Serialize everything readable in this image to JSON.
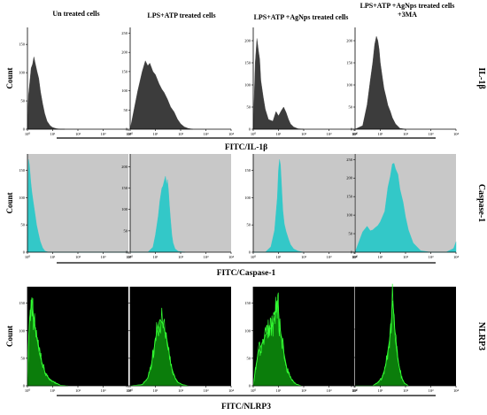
{
  "chart_data": {
    "type": "area",
    "columns": [
      "Un treated cells",
      "LPS+ATP treated cells",
      "LPS+ATP +AgNps treated cells",
      "LPS+ATP +AgNps treated cells +3MA"
    ],
    "column_title_lines": [
      [
        "Un treated cells"
      ],
      [
        "LPS+ATP treated cells"
      ],
      [
        "LPS+ATP +AgNps treated cells"
      ],
      [
        "LPS+ATP +AgNps treated cells",
        "+3MA"
      ]
    ],
    "ylabel": "Count",
    "x_tick_labels": [
      "10⁰",
      "10¹",
      "10²",
      "10³",
      "10⁴"
    ],
    "x_scale": "log",
    "xlim": [
      1,
      10000
    ],
    "rows": [
      {
        "marker": "IL-1β",
        "xlabel": "FITC/IL-1β",
        "fill_color": "#3c3c3c",
        "panel_background": "#ffffff",
        "y_ticks": [
          [
            0,
            50,
            100,
            150
          ],
          [
            0,
            50,
            100,
            150,
            200,
            250
          ],
          [
            0,
            50,
            100,
            150,
            200
          ],
          [
            0,
            50,
            100,
            150,
            200
          ]
        ],
        "ylim": [
          [
            0,
            180
          ],
          [
            0,
            265
          ],
          [
            0,
            230
          ],
          [
            0,
            230
          ]
        ],
        "histograms": [
          {
            "x": [
              1,
              1.1,
              1.25,
              1.4,
              1.6,
              1.8,
              2.0,
              2.4,
              2.8,
              3.3,
              4.0,
              4.8,
              6,
              8,
              10,
              14,
              20,
              30
            ],
            "counts": [
              0,
              60,
              85,
              108,
              115,
              128,
              118,
              102,
              90,
              66,
              45,
              28,
              14,
              6,
              3,
              1,
              0,
              0
            ]
          },
          {
            "x": [
              1,
              2,
              3,
              4,
              5,
              6,
              8,
              10,
              14,
              18,
              22,
              30,
              40,
              55,
              75,
              100,
              140,
              200,
              300
            ],
            "counts": [
              0,
              100,
              150,
              178,
              165,
              172,
              150,
              142,
              118,
              104,
              96,
              78,
              58,
              45,
              26,
              14,
              6,
              2,
              0
            ]
          },
          {
            "x": [
              1,
              1.2,
              1.4,
              1.6,
              1.8,
              2.0,
              2.5,
              3,
              4,
              6,
              8,
              10,
              13,
              16,
              20,
              25,
              30,
              40,
              60,
              100
            ],
            "counts": [
              0,
              150,
              205,
              178,
              158,
              110,
              72,
              45,
              22,
              18,
              40,
              30,
              42,
              50,
              38,
              22,
              12,
              5,
              1,
              0
            ]
          },
          {
            "x": [
              1,
              2,
              3,
              4,
              5,
              6,
              7,
              8,
              9,
              10,
              12,
              14,
              17,
              20,
              25,
              30,
              40,
              60,
              100
            ],
            "counts": [
              0,
              8,
              55,
              110,
              150,
              192,
              210,
              200,
              180,
              150,
              118,
              92,
              72,
              54,
              40,
              26,
              12,
              2,
              0
            ]
          }
        ]
      },
      {
        "marker": "Caspase-1",
        "xlabel": "FITC/Caspase-1",
        "fill_color": "#33c8c8",
        "panel_background": "#c8c8c8",
        "y_ticks": [
          [
            0,
            50,
            100,
            150
          ],
          [
            0,
            50,
            100,
            150,
            200
          ],
          [
            0,
            50,
            100,
            150
          ],
          [
            0,
            50,
            100,
            150,
            200,
            250
          ]
        ],
        "ylim": [
          [
            0,
            180
          ],
          [
            0,
            230
          ],
          [
            0,
            180
          ],
          [
            0,
            265
          ]
        ],
        "histograms": [
          {
            "x": [
              1,
              1.1,
              1.2,
              1.35,
              1.5,
              1.7,
              2.0,
              2.3,
              2.7,
              3.2,
              4,
              5,
              7,
              10,
              20,
              100,
              1000,
              10000
            ],
            "counts": [
              0,
              170,
              160,
              130,
              110,
              92,
              70,
              50,
              35,
              20,
              8,
              2,
              0,
              0,
              0,
              0,
              0,
              0
            ]
          },
          {
            "x": [
              1,
              5,
              8,
              10,
              13,
              15,
              18,
              20,
              22,
              25,
              28,
              30,
              33,
              36,
              40,
              45,
              50,
              60,
              80,
              150
            ],
            "counts": [
              0,
              0,
              12,
              40,
              85,
              120,
              150,
              155,
              165,
              178,
              158,
              170,
              145,
              110,
              75,
              40,
              22,
              8,
              2,
              0
            ]
          },
          {
            "x": [
              1,
              3,
              5,
              7,
              9,
              10,
              11,
              12,
              13,
              14,
              15,
              17,
              20,
              25,
              30,
              40,
              60,
              100
            ],
            "counts": [
              0,
              0,
              10,
              40,
              100,
              150,
              170,
              160,
              130,
              100,
              75,
              52,
              38,
              24,
              14,
              6,
              2,
              0
            ]
          },
          {
            "x": [
              1,
              2,
              3,
              4,
              5,
              6,
              8,
              10,
              15,
              20,
              25,
              30,
              35,
              40,
              50,
              60,
              80,
              100,
              130,
              200,
              400,
              1000,
              4000,
              8000,
              10000
            ],
            "counts": [
              0,
              55,
              70,
              58,
              60,
              65,
              72,
              82,
              110,
              175,
              205,
              238,
              240,
              225,
              210,
              170,
              135,
              95,
              60,
              25,
              4,
              0,
              0,
              10,
              28
            ]
          }
        ]
      },
      {
        "marker": "NLRP3",
        "xlabel": "FITC/NLRP3",
        "fill_color": "#0b7d0b",
        "line_color": "#33ff33",
        "panel_background": "#000000",
        "y_ticks": [
          [
            0,
            50,
            100,
            150
          ],
          [
            0,
            50,
            100,
            150
          ],
          [
            0,
            50,
            100,
            150
          ],
          [
            0,
            50,
            100
          ]
        ],
        "ylim": [
          [
            0,
            180
          ],
          [
            0,
            180
          ],
          [
            0,
            180
          ],
          [
            0,
            175
          ]
        ],
        "histograms": [
          {
            "x": [
              1,
              1.1,
              1.2,
              1.35,
              1.5,
              1.7,
              2.0,
              2.5,
              3,
              4,
              5,
              7,
              10,
              15,
              20,
              40
            ],
            "counts": [
              0,
              75,
              120,
              140,
              160,
              130,
              105,
              80,
              58,
              38,
              24,
              14,
              8,
              4,
              1,
              0
            ]
          },
          {
            "x": [
              1,
              3,
              5,
              7,
              9,
              11,
              13,
              15,
              17,
              20,
              23,
              26,
              30,
              35,
              40,
              50,
              60,
              80,
              120,
              200
            ],
            "counts": [
              0,
              2,
              14,
              40,
              70,
              95,
              110,
              120,
              118,
              112,
              100,
              95,
              78,
              60,
              40,
              25,
              15,
              6,
              2,
              0
            ]
          },
          {
            "x": [
              1,
              1.3,
              1.6,
              2,
              2.5,
              3,
              4,
              5,
              6,
              7,
              8,
              9,
              10,
              11,
              13,
              15,
              18,
              22,
              28,
              35,
              50,
              80
            ],
            "counts": [
              0,
              38,
              62,
              72,
              80,
              92,
              100,
              105,
              112,
              125,
              140,
              155,
              138,
              108,
              90,
              70,
              50,
              30,
              18,
              10,
              3,
              0
            ]
          },
          {
            "x": [
              1,
              5,
              8,
              12,
              15,
              18,
              20,
              23,
              25,
              28,
              30,
              33,
              36,
              40,
              45,
              50,
              60,
              70,
              90,
              130
            ],
            "counts": [
              0,
              0,
              6,
              15,
              30,
              48,
              62,
              80,
              95,
              120,
              150,
              135,
              108,
              80,
              62,
              45,
              28,
              15,
              5,
              0
            ]
          }
        ]
      }
    ]
  }
}
